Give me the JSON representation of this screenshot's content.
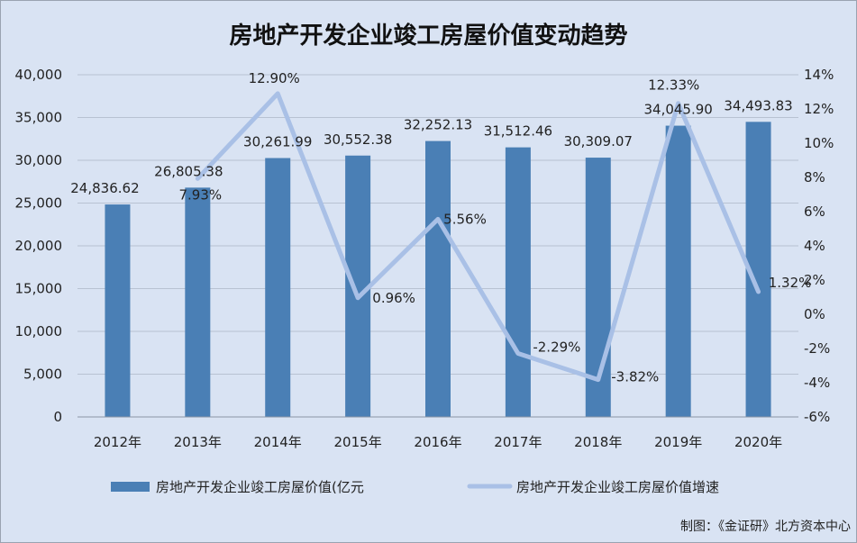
{
  "chart_data": {
    "type": "bar",
    "title": "房地产开发企业竣工房屋价值变动趋势",
    "categories": [
      "2012年",
      "2013年",
      "2014年",
      "2015年",
      "2016年",
      "2017年",
      "2018年",
      "2019年",
      "2020年"
    ],
    "series": [
      {
        "name": "房地产开发企业竣工房屋价值(亿元",
        "type": "bar",
        "axis": "left",
        "color": "#4a7fb5",
        "values": [
          24836.62,
          26805.38,
          30261.99,
          30552.38,
          32252.13,
          31512.46,
          30309.07,
          34045.9,
          34493.83
        ],
        "labels": [
          "24,836.62",
          "26,805.38",
          "30,261.99",
          "30,552.38",
          "32,252.13",
          "31,512.46",
          "30,309.07",
          "34,045.90",
          "34,493.83"
        ]
      },
      {
        "name": "房地产开发企业竣工房屋价值增速",
        "type": "line",
        "axis": "right",
        "color": "#a9c0e6",
        "values": [
          null,
          7.93,
          12.9,
          0.96,
          5.56,
          -2.29,
          -3.82,
          12.33,
          1.32
        ],
        "labels": [
          "",
          "7.93%",
          "12.90%",
          "0.96%",
          "5.56%",
          "-2.29%",
          "-3.82%",
          "12.33%",
          "1.32%"
        ]
      }
    ],
    "y_left": {
      "lim": [
        0,
        40000
      ],
      "ticks": [
        0,
        5000,
        10000,
        15000,
        20000,
        25000,
        30000,
        35000,
        40000
      ],
      "tick_labels": [
        "0",
        "5,000",
        "10,000",
        "15,000",
        "20,000",
        "25,000",
        "30,000",
        "35,000",
        "40,000"
      ]
    },
    "y_right": {
      "lim": [
        -6,
        14
      ],
      "ticks": [
        -6,
        -4,
        -2,
        0,
        2,
        4,
        6,
        8,
        10,
        12,
        14
      ],
      "tick_labels": [
        "-6%",
        "-4%",
        "-2%",
        "0%",
        "2%",
        "4%",
        "6%",
        "8%",
        "10%",
        "12%",
        "14%"
      ]
    },
    "grid": true,
    "legend": "bottom",
    "source": "制图：《金证研》北方资本中心"
  }
}
